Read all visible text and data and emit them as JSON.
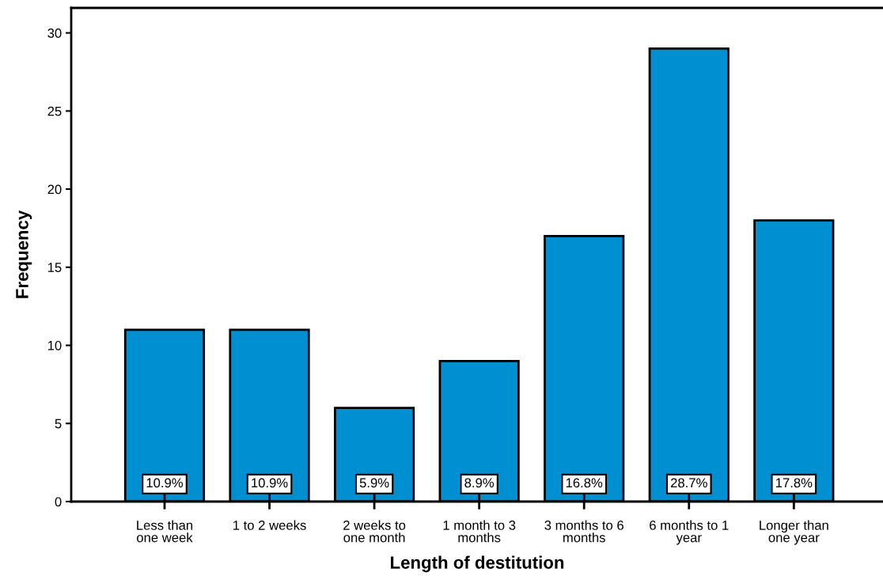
{
  "chart_data": {
    "type": "bar",
    "xlabel": "Length of destitution",
    "ylabel": "Frequency",
    "categories": [
      "Less than\none week",
      "1 to 2 weeks",
      "2 weeks to\none month",
      "1 month to 3\nmonths",
      "3 months to 6\nmonths",
      "6 months to 1\nyear",
      "Longer than\none year"
    ],
    "values": [
      11,
      11,
      6,
      9,
      17,
      29,
      18
    ],
    "annotations": [
      {
        "text": "10.9%",
        "x": "Less than\none week",
        "y": 0
      },
      {
        "text": "10.9%",
        "x": "1 to 2 weeks",
        "y": 0
      },
      {
        "text": "5.9%",
        "x": "2 weeks to\none month",
        "y": 0
      },
      {
        "text": "8.9%",
        "x": "1 month to 3\nmonths",
        "y": 0
      },
      {
        "text": "16.8%",
        "x": "3 months to 6\nmonths",
        "y": 0
      },
      {
        "text": "28.7%",
        "x": "6 months to 1\nyear",
        "y": 0
      },
      {
        "text": "17.8%",
        "x": "Longer than\none year",
        "y": 0
      }
    ],
    "color": "#0090d2",
    "ylim": [
      0,
      31.6
    ],
    "yticks": [
      0,
      5,
      10,
      15,
      20,
      25,
      30
    ],
    "grid": false,
    "legend": false
  }
}
